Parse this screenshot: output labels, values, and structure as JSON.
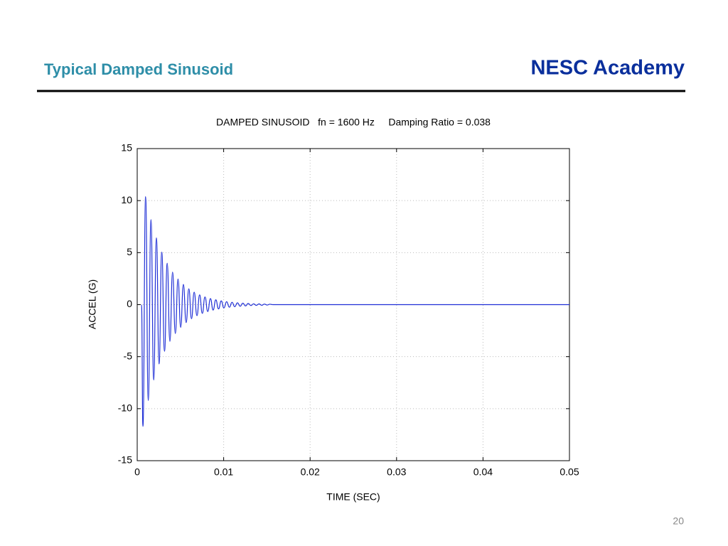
{
  "header": {
    "title": "Typical Damped Sinusoid",
    "brand": "NESC Academy"
  },
  "page_number": "20",
  "chart_data": {
    "type": "line",
    "title": "DAMPED SINUSOID   fn = 1600 Hz     Damping Ratio = 0.038",
    "xlabel": "TIME (SEC)",
    "ylabel": "ACCEL (G)",
    "x": [
      0.0005,
      0.00066,
      0.00097,
      0.00128,
      0.00159,
      0.00191,
      0.00222,
      0.00253,
      0.00284,
      0.00316,
      0.00347,
      0.00378,
      0.00409,
      0.00441,
      0.00472,
      0.00503,
      0.00534,
      0.00566,
      0.00597,
      0.00628,
      0.00659,
      0.00691,
      0.00722,
      0.00753,
      0.00784,
      0.00816,
      0.00847,
      0.00878,
      0.00909,
      0.00941,
      0.00972,
      0.01003,
      0.01034,
      0.01066,
      0.01097,
      0.01128,
      0.01159,
      0.01191,
      0.01222,
      0.01253,
      0.01284,
      0.01316,
      0.01347,
      0.01378,
      0.01409,
      0.01441,
      0.01472,
      0.01503,
      0.01534,
      0.0157,
      0.05
    ],
    "series": [
      {
        "color": "#1f2fd6",
        "values": [
          0,
          -11.7,
          10.38,
          -9.21,
          8.17,
          -7.24,
          6.42,
          -5.7,
          5.05,
          -4.48,
          3.98,
          -3.53,
          3.13,
          -2.77,
          2.46,
          -2.18,
          1.94,
          -1.72,
          1.52,
          -1.35,
          1.2,
          -1.06,
          0.94,
          -0.84,
          0.74,
          -0.66,
          0.58,
          -0.52,
          0.46,
          -0.41,
          0.36,
          -0.32,
          0.28,
          -0.25,
          0.22,
          -0.2,
          0.17,
          -0.15,
          0.14,
          -0.12,
          0.11,
          -0.09,
          0.08,
          -0.07,
          0.07,
          -0.06,
          0.05,
          -0.04,
          0.04,
          0,
          0
        ]
      }
    ],
    "xlim": [
      0,
      0.05
    ],
    "xticks": [
      0,
      0.01,
      0.02,
      0.03,
      0.04,
      0.05
    ],
    "ylim": [
      -15,
      15
    ],
    "yticks": [
      -15,
      -10,
      -5,
      0,
      5,
      10,
      15
    ],
    "grid": true
  }
}
